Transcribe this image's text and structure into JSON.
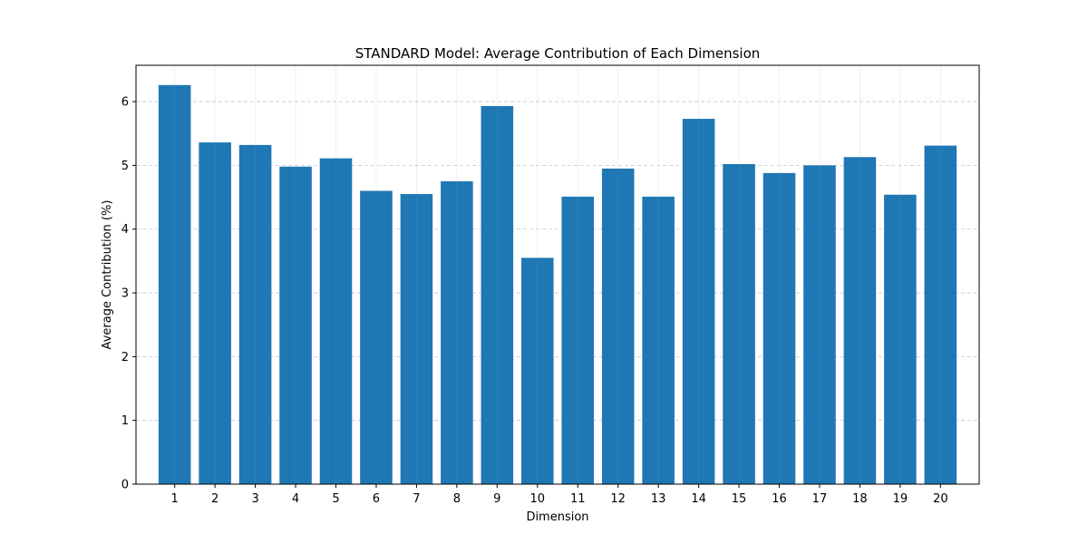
{
  "chart_data": {
    "type": "bar",
    "title": "STANDARD Model: Average Contribution of Each Dimension",
    "xlabel": "Dimension",
    "ylabel": "Average Contribution (%)",
    "categories": [
      "1",
      "2",
      "3",
      "4",
      "5",
      "6",
      "7",
      "8",
      "9",
      "10",
      "11",
      "12",
      "13",
      "14",
      "15",
      "16",
      "17",
      "18",
      "19",
      "20"
    ],
    "values": [
      6.26,
      5.36,
      5.32,
      4.98,
      5.11,
      4.6,
      4.55,
      4.75,
      5.93,
      3.55,
      4.51,
      4.95,
      4.51,
      5.73,
      5.02,
      4.88,
      5.0,
      5.13,
      4.54,
      5.31
    ],
    "ylim": [
      0,
      6.57
    ],
    "yticks": [
      0,
      1,
      2,
      3,
      4,
      5,
      6
    ],
    "grid": true,
    "bar_color": "#1f77b4",
    "grid_color": "#b0b0b0"
  }
}
